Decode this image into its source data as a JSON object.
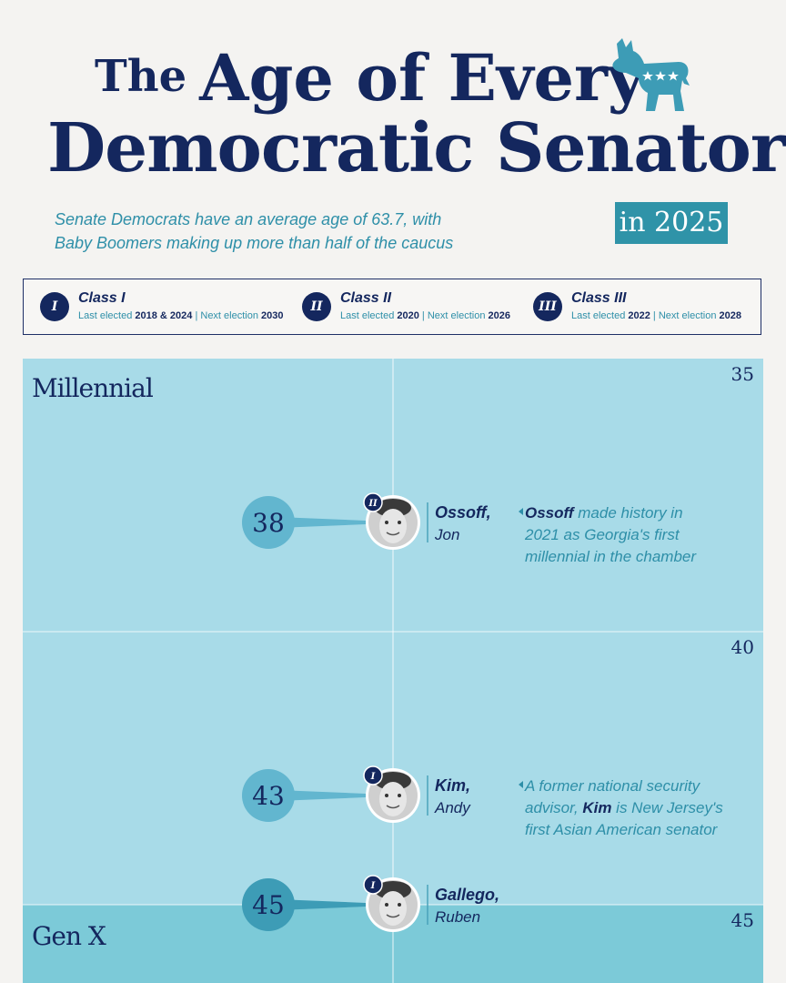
{
  "header": {
    "title_small": "The",
    "title_rest": "Age of Every",
    "title_line2": "Democratic Senator",
    "subtitle_line1": "Senate Democrats have an average age of 63.7, with",
    "subtitle_line2": "Baby Boomers making up more than half of the caucus",
    "year_badge": "in 2025",
    "logo_icon": "democratic-donkey-icon"
  },
  "legend": {
    "classes": [
      {
        "numeral": "I",
        "name": "Class I",
        "last_label": "Last elected",
        "last": "2018 & 2024",
        "next_label": "Next election",
        "next": "2030"
      },
      {
        "numeral": "II",
        "name": "Class II",
        "last_label": "Last elected",
        "last": "2020",
        "next_label": "Next election",
        "next": "2026"
      },
      {
        "numeral": "III",
        "name": "Class III",
        "last_label": "Last elected",
        "last": "2022",
        "next_label": "Next election",
        "next": "2028"
      }
    ]
  },
  "colors": {
    "navy": "#14275e",
    "teal": "#2f93a8",
    "millennial_band": "#a8dbe8",
    "genx_band": "#7ccad8",
    "bubble": "#62b6cf",
    "bubble_dark": "#3d9cb6"
  },
  "chart_data": {
    "type": "scatter",
    "axis": {
      "min": 35,
      "max": 46.5,
      "ticks": [
        35,
        40,
        45
      ]
    },
    "generations": [
      {
        "label": "Millennial",
        "from": 35,
        "to": 45
      },
      {
        "label": "Gen X",
        "from": 45,
        "to": 46.5
      }
    ],
    "senators": [
      {
        "age": 38,
        "last": "Ossoff",
        "first": "Jon",
        "class": "II",
        "note": [
          "made history in",
          "2021 as Georgia's first",
          "millennial in the chamber"
        ],
        "note_bold": "Ossoff"
      },
      {
        "age": 43,
        "last": "Kim",
        "first": "Andy",
        "class": "I",
        "note": [
          "A former national security",
          "advisor, is New Jersey's",
          "first Asian American senator"
        ],
        "note_bold": "Kim"
      },
      {
        "age": 45,
        "last": "Gallego",
        "first": "Ruben",
        "class": "I",
        "note": [],
        "note_bold": ""
      }
    ]
  }
}
